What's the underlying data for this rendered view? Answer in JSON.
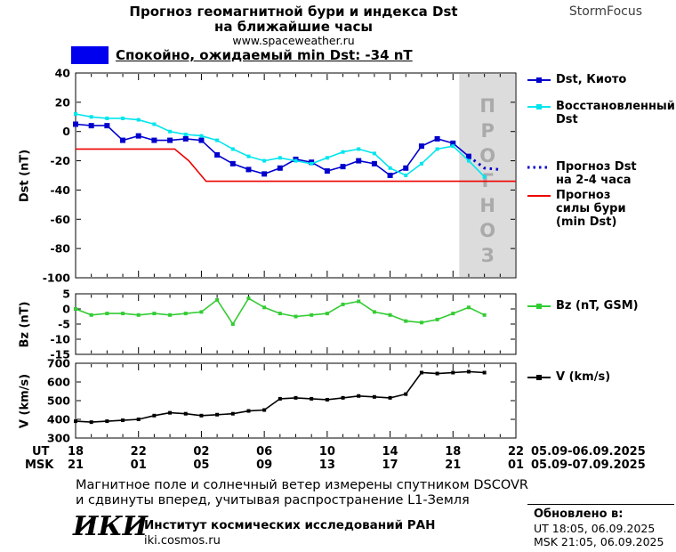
{
  "header": {
    "title_line1": "Прогноз геомагнитной бури и индекса Dst",
    "title_line2": "на ближайшие часы",
    "website": "www.spaceweather.ru",
    "brand": "StormFocus"
  },
  "status": {
    "label": "Спокойно, ожидаемый min Dst: -34 nT",
    "box_color": "#0000ee"
  },
  "legend": {
    "dst_kyoto": "Dst, Киото",
    "restored_line1": "Восстановленный",
    "restored_line2": "Dst",
    "forecast_dst_line1": "Прогноз Dst",
    "forecast_dst_line2": "на 2-4 часа",
    "storm_line1": "Прогноз",
    "storm_line2": "силы бури",
    "storm_line3": "(min Dst)",
    "bz": "Bz (nT, GSM)",
    "v": "V (km/s)"
  },
  "xaxis": {
    "ut_label": "UT",
    "msk_label": "MSK",
    "ut_ticks": [
      "18",
      "22",
      "02",
      "06",
      "10",
      "14",
      "18",
      "22"
    ],
    "msk_ticks": [
      "21",
      "01",
      "05",
      "09",
      "13",
      "17",
      "21",
      "01"
    ],
    "ut_date": "05.09-06.09.2025",
    "msk_date": "05.09-07.09.2025"
  },
  "footer": {
    "note_line1": "Магнитное поле и солнечный ветер измерены спутником DSCOVR",
    "note_line2": "и сдвинуты вперед, учитывая распространение L1-Земля",
    "logo": "ИКИ",
    "institute": "Институт космических исследований РАН",
    "site": "iki.cosmos.ru",
    "updated_label": "Обновлено в:",
    "updated_ut": "UT  18:05, 06.09.2025",
    "updated_msk": "MSK 21:05, 06.09.2025"
  },
  "chart_data": [
    {
      "id": "dst",
      "type": "line",
      "title": "Прогноз геомагнитной бури и индекса Dst на ближайшие часы",
      "ylabel": "Dst (nT)",
      "ylim": [
        -100,
        40
      ],
      "yticks": [
        40,
        20,
        0,
        -20,
        -40,
        -60,
        -80,
        -100
      ],
      "xlim": [
        18,
        46
      ],
      "xticks": [
        18,
        22,
        26,
        30,
        34,
        38,
        42,
        46
      ],
      "forecast_band": {
        "start": 42.4,
        "label": "ПРОГНОЗ",
        "fill": "#dcdcdc",
        "text_color": "#aaaaaa"
      },
      "series": [
        {
          "key": "dst-kyoto",
          "name": "Dst, Киото",
          "color": "#0000cd",
          "marker": true,
          "marker_size": 6,
          "x": [
            18,
            19,
            20,
            21,
            22,
            23,
            24,
            25,
            26,
            27,
            28,
            29,
            30,
            31,
            32,
            33,
            34,
            35,
            36,
            37,
            38,
            39,
            40,
            41,
            42,
            43
          ],
          "y": [
            5,
            4,
            4,
            -6,
            -3,
            -6,
            -6,
            -5,
            -6,
            -16,
            -22,
            -26,
            -29,
            -25,
            -19,
            -21,
            -27,
            -24,
            -20,
            -22,
            -30,
            -25,
            -10,
            -5,
            -8,
            -17
          ]
        },
        {
          "key": "restored-dst",
          "name": "Восстановленный Dst",
          "color": "#00e5ee",
          "marker": true,
          "marker_size": 4,
          "x": [
            18,
            19,
            20,
            21,
            22,
            23,
            24,
            25,
            26,
            27,
            28,
            29,
            30,
            31,
            32,
            33,
            34,
            35,
            36,
            37,
            38,
            39,
            40,
            41,
            42,
            43,
            44
          ],
          "y": [
            12,
            10,
            9,
            9,
            8,
            5,
            0,
            -2,
            -3,
            -6,
            -12,
            -17,
            -20,
            -18,
            -20,
            -22,
            -18,
            -14,
            -12,
            -15,
            -25,
            -30,
            -22,
            -12,
            -10,
            -20,
            -31
          ]
        },
        {
          "key": "forecast-dst",
          "name": "Прогноз Dst на 2-4 часа",
          "color": "#0000cd",
          "dotted": true,
          "x": [
            43,
            44,
            45
          ],
          "y": [
            -17,
            -25,
            -26
          ]
        },
        {
          "key": "storm-forecast",
          "name": "Прогноз силы бури (min Dst)",
          "color": "#ee0000",
          "x": [
            18,
            24.3,
            25.2,
            26.3,
            46
          ],
          "y": [
            -12,
            -12,
            -20,
            -34,
            -34
          ]
        }
      ]
    },
    {
      "id": "bz",
      "type": "line",
      "ylabel": "Bz (nT)",
      "ylim": [
        -15,
        5
      ],
      "yticks": [
        5,
        0,
        -5,
        -10,
        -15
      ],
      "xlim": [
        18,
        46
      ],
      "xticks": [
        18,
        22,
        26,
        30,
        34,
        38,
        42,
        46
      ],
      "series": [
        {
          "key": "bz",
          "name": "Bz (nT, GSM)",
          "color": "#33cc33",
          "marker": true,
          "marker_size": 4,
          "x": [
            18,
            19,
            20,
            21,
            22,
            23,
            24,
            25,
            26,
            27,
            28,
            29,
            30,
            31,
            32,
            33,
            34,
            35,
            36,
            37,
            38,
            39,
            40,
            41,
            42,
            43,
            44
          ],
          "y": [
            0,
            -2,
            -1.5,
            -1.5,
            -2,
            -1.5,
            -2,
            -1.5,
            -1,
            3,
            -5,
            3.5,
            0.5,
            -1.5,
            -2.5,
            -2,
            -1.5,
            1.5,
            2.5,
            -1,
            -2,
            -4,
            -4.5,
            -3.5,
            -1.5,
            0.5,
            -2
          ]
        }
      ]
    },
    {
      "id": "v",
      "type": "line",
      "ylabel": "V (km/s)",
      "ylim": [
        300,
        700
      ],
      "yticks": [
        700,
        600,
        500,
        400,
        300
      ],
      "xlim": [
        18,
        46
      ],
      "xticks": [
        18,
        22,
        26,
        30,
        34,
        38,
        42,
        46
      ],
      "series": [
        {
          "key": "v",
          "name": "V (km/s)",
          "color": "#000000",
          "marker": true,
          "marker_size": 4,
          "x": [
            18,
            19,
            20,
            21,
            22,
            23,
            24,
            25,
            26,
            27,
            28,
            29,
            30,
            31,
            32,
            33,
            34,
            35,
            36,
            37,
            38,
            39,
            40,
            41,
            42,
            43,
            44
          ],
          "y": [
            390,
            385,
            390,
            395,
            400,
            420,
            435,
            430,
            420,
            425,
            430,
            445,
            450,
            510,
            515,
            510,
            505,
            515,
            525,
            520,
            515,
            535,
            650,
            645,
            650,
            655,
            650
          ]
        }
      ]
    }
  ]
}
